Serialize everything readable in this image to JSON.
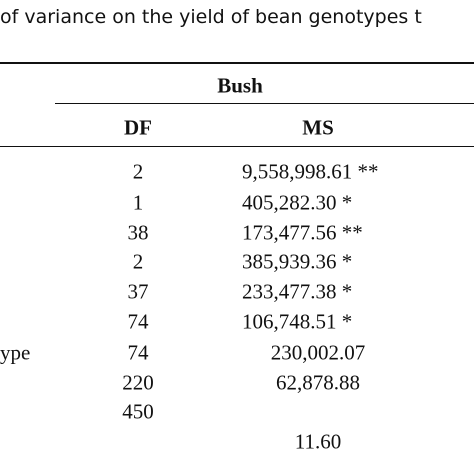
{
  "header": {
    "title": "of variance on the yield of bean genotypes t"
  },
  "table": {
    "group": "Bush",
    "columns": {
      "df": "DF",
      "ms": "MS"
    },
    "rows": [
      {
        "df": "2",
        "ms": "9,558,998.61 **"
      },
      {
        "df": "1",
        "ms": "405,282.30 *"
      },
      {
        "df": "38",
        "ms": "173,477.56 **"
      },
      {
        "df": "2",
        "ms": "385,939.36 *"
      },
      {
        "df": "37",
        "ms": "233,477.38 *"
      },
      {
        "df": "74",
        "ms": "106,748.51 *"
      },
      {
        "source": "ype",
        "df": "74",
        "ms": "230,002.07"
      },
      {
        "df": "220",
        "ms": "62,878.88"
      },
      {
        "df": "450"
      },
      {
        "ms": "11.60"
      }
    ]
  }
}
